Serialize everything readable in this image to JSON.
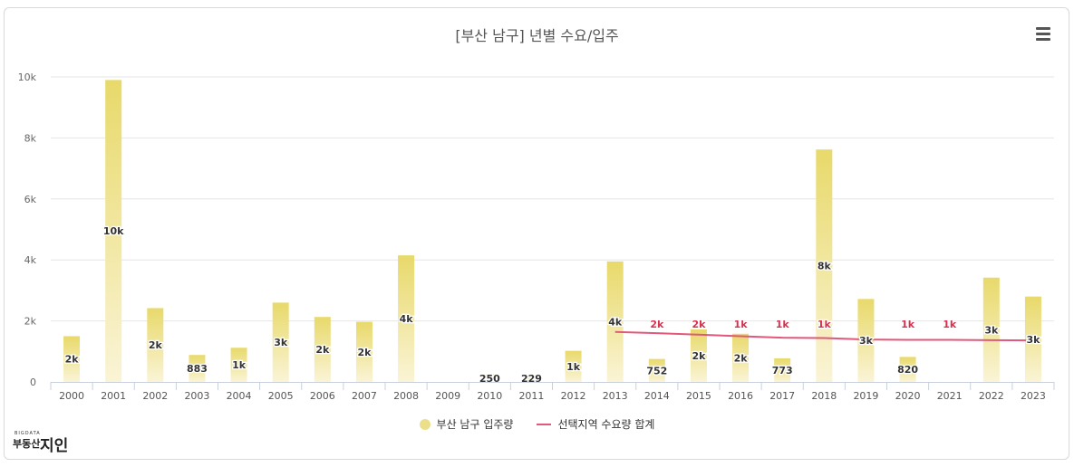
{
  "title": "[부산 남구] 년별 수요/입주",
  "legend": {
    "bar_label": "부산 남구 입주량",
    "line_label": "선택지역 수요량 합계"
  },
  "logo": {
    "small": "BIGDATA",
    "main": "부동산",
    "big": "지인"
  },
  "colors": {
    "bar_top": "#e8d96a",
    "bar_bottom": "#faf4d6",
    "line": "#e0587a",
    "line_label": "#d9304f",
    "grid": "#e6e6e6"
  },
  "chart_data": {
    "type": "bar",
    "title": "[부산 남구] 년별 수요/입주",
    "categories": [
      "2000",
      "2001",
      "2002",
      "2003",
      "2004",
      "2005",
      "2006",
      "2007",
      "2008",
      "2009",
      "2010",
      "2011",
      "2012",
      "2013",
      "2014",
      "2015",
      "2016",
      "2017",
      "2018",
      "2019",
      "2020",
      "2021",
      "2022",
      "2023"
    ],
    "ylim": [
      0,
      10000
    ],
    "yticks": [
      "0",
      "2k",
      "4k",
      "6k",
      "8k",
      "10k"
    ],
    "grid": true,
    "legend_position": "bottom",
    "series": [
      {
        "name": "부산 남구 입주량",
        "type": "bar",
        "values": [
          1500,
          9900,
          2420,
          883,
          1120,
          2600,
          2130,
          1970,
          4150,
          0,
          250,
          229,
          1020,
          3950,
          752,
          1720,
          1580,
          773,
          7620,
          2720,
          820,
          0,
          3420,
          2800
        ],
        "labels": [
          "2k",
          "10k",
          "2k",
          "883",
          "1k",
          "3k",
          "2k",
          "2k",
          "4k",
          "",
          "250",
          "229",
          "1k",
          "4k",
          "752",
          "2k",
          "2k",
          "773",
          "8k",
          "3k",
          "820",
          "",
          "3k",
          "3k"
        ]
      },
      {
        "name": "선택지역 수요량 합계",
        "type": "line",
        "values": [
          null,
          null,
          null,
          null,
          null,
          null,
          null,
          null,
          null,
          null,
          null,
          null,
          null,
          1640,
          1600,
          1550,
          1500,
          1450,
          1440,
          1390,
          1380,
          1380,
          1370,
          1360
        ],
        "labels": [
          "",
          "",
          "",
          "",
          "",
          "",
          "",
          "",
          "",
          "",
          "",
          "",
          "",
          "",
          "2k",
          "2k",
          "1k",
          "1k",
          "1k",
          "",
          "1k",
          "1k",
          "",
          ""
        ]
      }
    ]
  }
}
